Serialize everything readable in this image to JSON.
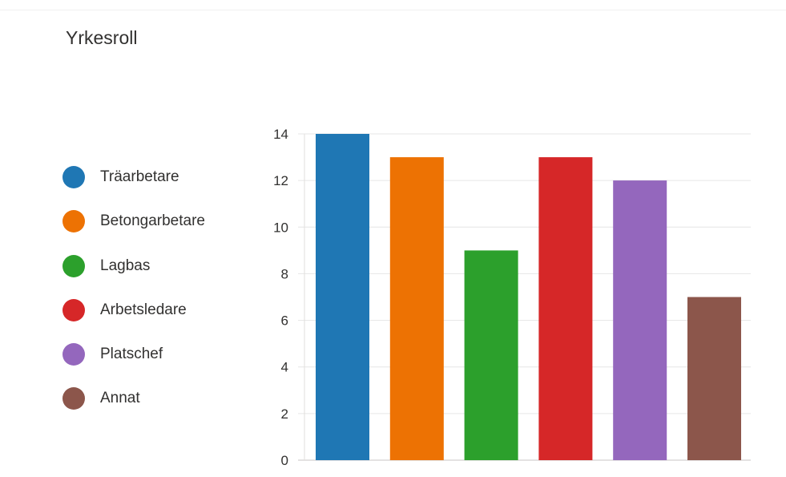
{
  "chart_data": {
    "type": "bar",
    "title": "Yrkesroll",
    "xlabel": "",
    "ylabel": "",
    "ylim": [
      0,
      14
    ],
    "yticks": [
      0,
      2,
      4,
      6,
      8,
      10,
      12,
      14
    ],
    "grid": true,
    "legend_position": "left",
    "categories": [
      "Träarbetare",
      "Betongarbetare",
      "Lagbas",
      "Arbetsledare",
      "Platschef",
      "Annat"
    ],
    "values": [
      14,
      13,
      9,
      13,
      12,
      7
    ],
    "colors": [
      "#1f77b4",
      "#ed7203",
      "#2ca02c",
      "#d62728",
      "#9467bd",
      "#8c564b"
    ]
  }
}
